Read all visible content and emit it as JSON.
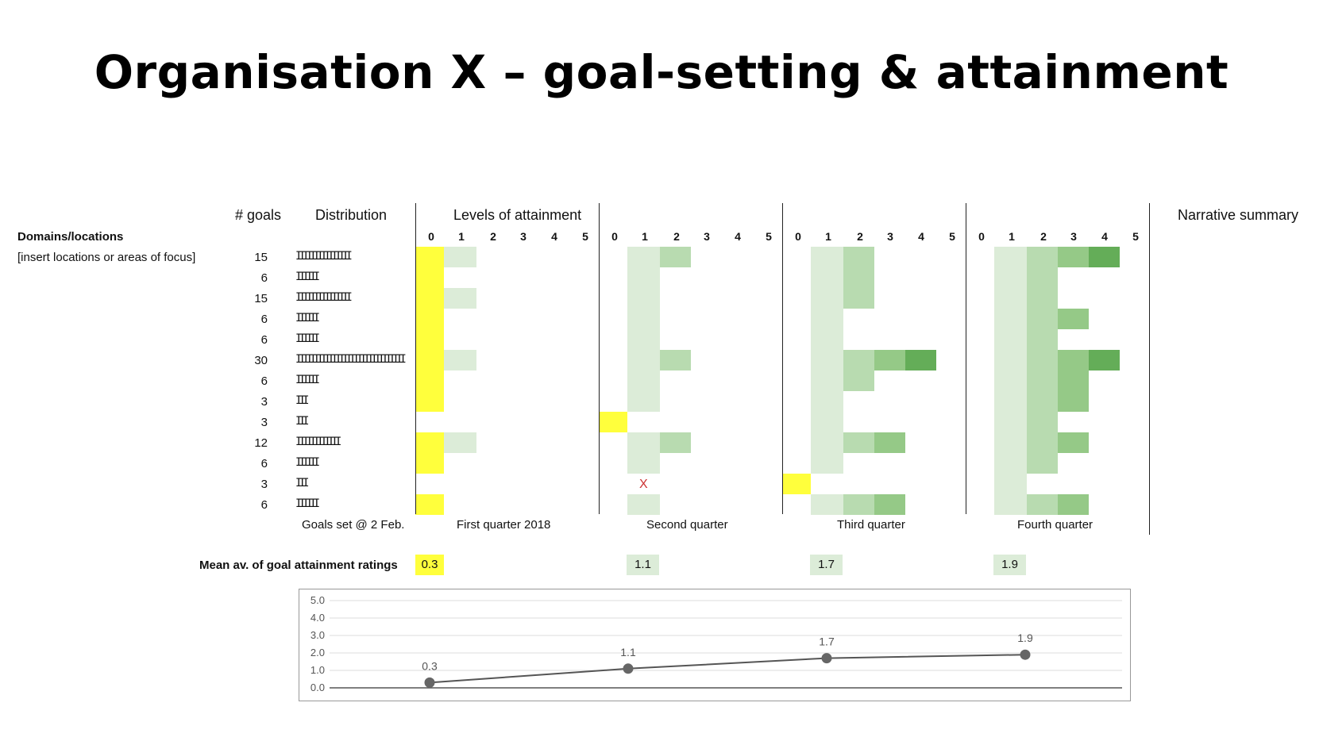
{
  "title": "Organisation X – goal-setting & attainment",
  "headers": {
    "goals": "# goals",
    "distribution": "Distribution",
    "levels": "Levels of attainment",
    "narrative": "Narrative summary",
    "domains": "Domains/locations",
    "insert_note": "[insert locations or areas of focus]"
  },
  "level_labels": [
    "0",
    "1",
    "2",
    "3",
    "4",
    "5"
  ],
  "goal_counts": [
    "15",
    "6",
    "15",
    "6",
    "6",
    "30",
    "6",
    "3",
    "3",
    "12",
    "6",
    "3",
    "6"
  ],
  "distribution_ticks": [
    "IIIIIIIIIIIIIII",
    "IIIIII",
    "IIIIIIIIIIIIIII",
    "IIIIII",
    "IIIIII",
    "IIIIIIIIIIIIIIIIIIIIIIIIIIIIII",
    "IIIIII",
    "III",
    "III",
    "IIIIIIIIIIII",
    "IIIIII",
    "III",
    "IIIIII"
  ],
  "period_labels": {
    "goals_set": "Goals set @ 2 Feb.",
    "q1": "First quarter 2018",
    "q2": "Second quarter",
    "q3": "Third quarter",
    "q4": "Fourth quarter"
  },
  "missing_marker": "X",
  "mean_label": "Mean av. of goal attainment ratings",
  "mean_values": [
    "0.3",
    "1.1",
    "1.7",
    "1.9"
  ],
  "colors": {
    "yellow": "#ffff3c",
    "green_1": "#dcecd8",
    "green_2": "#b8dbb0",
    "green_3": "#95c987",
    "green_4": "#64ad58",
    "marker": "#cc3333",
    "line": "#555555"
  },
  "heatmap": {
    "description_levels": "attainment level reached per goal row per quarter (0-4)",
    "q1": [
      1,
      0,
      1,
      0,
      0,
      1,
      0,
      0,
      null,
      1,
      0,
      null,
      0
    ],
    "q2": [
      2,
      1,
      1,
      1,
      1,
      2,
      1,
      1,
      0,
      2,
      1,
      "x",
      1
    ],
    "q3": [
      2,
      2,
      2,
      1,
      1,
      4,
      2,
      1,
      1,
      3,
      1,
      0,
      3
    ],
    "q4": [
      4,
      2,
      2,
      3,
      2,
      4,
      3,
      3,
      2,
      3,
      2,
      1,
      3
    ]
  },
  "chart_data": {
    "type": "line",
    "categories": [
      "First quarter 2018",
      "Second quarter",
      "Third quarter",
      "Fourth quarter"
    ],
    "series": [
      {
        "values": [
          0.3,
          1.1,
          1.7,
          1.9
        ]
      }
    ],
    "data_labels": [
      "0.3",
      "1.1",
      "1.7",
      "1.9"
    ],
    "y_ticks": [
      "5.0",
      "4.0",
      "3.0",
      "2.0",
      "1.0",
      "0.0"
    ],
    "ylim": [
      0,
      5
    ],
    "grid": true,
    "legend": "none"
  }
}
